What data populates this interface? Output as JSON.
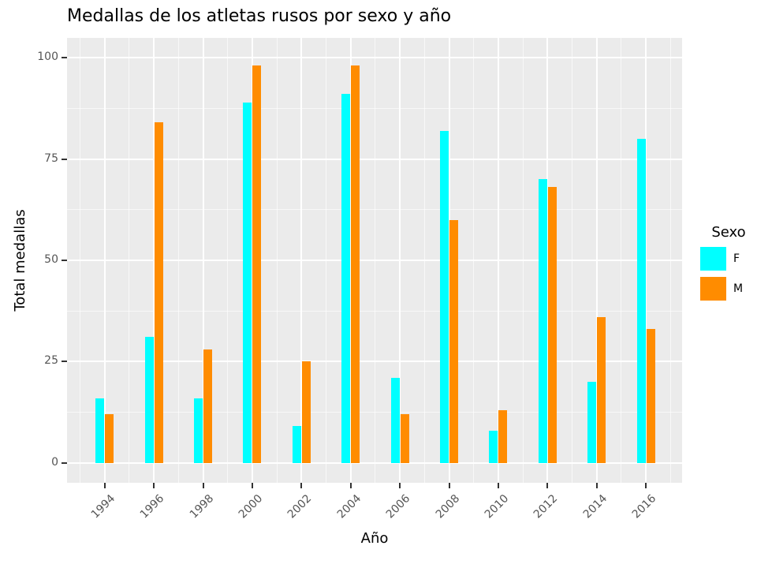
{
  "title": "Medallas de los atletas rusos por sexo y año",
  "chart_data": {
    "type": "bar",
    "title": "Medallas de los atletas rusos por sexo y año",
    "xlabel": "Año",
    "ylabel": "Total medallas",
    "categories": [
      "1994",
      "1996",
      "1998",
      "2000",
      "2002",
      "2004",
      "2006",
      "2008",
      "2010",
      "2012",
      "2014",
      "2016"
    ],
    "series": [
      {
        "name": "F",
        "color": "#00FFFF",
        "values": [
          16,
          31,
          16,
          89,
          9,
          91,
          21,
          82,
          8,
          70,
          20,
          80
        ]
      },
      {
        "name": "M",
        "color": "#FF8C00",
        "values": [
          12,
          84,
          28,
          98,
          25,
          98,
          12,
          60,
          13,
          68,
          36,
          33
        ]
      }
    ],
    "ylim": [
      0,
      100
    ],
    "yticks": [
      0,
      25,
      50,
      75,
      100
    ],
    "yticks_minor": [
      12.5,
      37.5,
      62.5,
      87.5
    ],
    "grid": "on",
    "legend_title": "Sexo",
    "legend_position": "right",
    "bar_mode": "grouped"
  },
  "legend": {
    "title": "Sexo",
    "items": [
      {
        "label": "F",
        "color": "#00FFFF"
      },
      {
        "label": "M",
        "color": "#FF8C00"
      }
    ]
  },
  "colors": {
    "figure_bg": "#FFFFFF",
    "panel_bg": "#EBEBEB",
    "gridline": "#FFFFFF",
    "tick_text": "#555555",
    "title_text": "#000000"
  }
}
